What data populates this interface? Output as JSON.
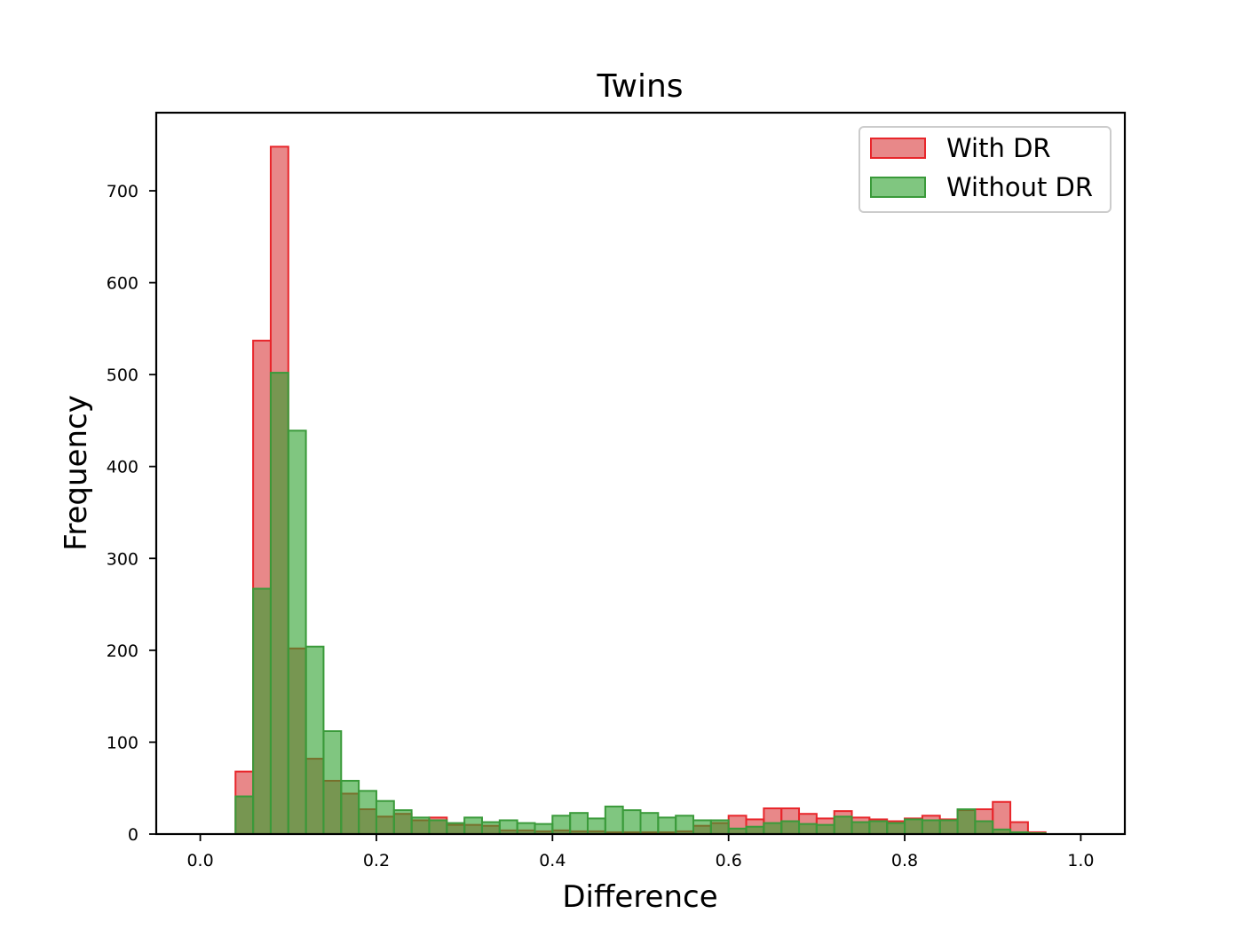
{
  "chart_data": {
    "type": "histogram",
    "title": "Twins",
    "xlabel": "Difference",
    "ylabel": "Frequency",
    "xlim": [
      -0.05,
      1.05
    ],
    "ylim": [
      0,
      785
    ],
    "xticks": [
      0.0,
      0.2,
      0.4,
      0.6,
      0.8,
      1.0
    ],
    "xtick_labels": [
      "0.0",
      "0.2",
      "0.4",
      "0.6",
      "0.8",
      "1.0"
    ],
    "yticks": [
      0,
      100,
      200,
      300,
      400,
      500,
      600,
      700
    ],
    "ytick_labels": [
      "0",
      "100",
      "200",
      "300",
      "400",
      "500",
      "600",
      "700"
    ],
    "grid": false,
    "legend_position": "top-right",
    "bin_start": 0.02,
    "bin_width": 0.02,
    "series": [
      {
        "name": "With DR",
        "fill": "#d62728",
        "edge": "#e8262b",
        "opacity": 0.55,
        "values": [
          0,
          68,
          537,
          748,
          202,
          82,
          58,
          44,
          27,
          19,
          22,
          15,
          18,
          10,
          10,
          9,
          4,
          4,
          3,
          4,
          3,
          3,
          2,
          2,
          2,
          2,
          3,
          9,
          12,
          20,
          16,
          28,
          28,
          22,
          17,
          25,
          18,
          16,
          14,
          17,
          20,
          16,
          26,
          27,
          35,
          13,
          2
        ]
      },
      {
        "name": "Without DR",
        "fill": "#2ca02c",
        "edge": "#3a9a3a",
        "opacity": 0.6,
        "values": [
          0,
          41,
          267,
          502,
          439,
          204,
          112,
          58,
          47,
          36,
          26,
          18,
          15,
          12,
          18,
          13,
          15,
          12,
          11,
          20,
          23,
          17,
          30,
          26,
          23,
          18,
          20,
          15,
          15,
          6,
          8,
          12,
          14,
          11,
          10,
          19,
          13,
          14,
          12,
          16,
          15,
          15,
          27,
          14,
          5,
          2,
          1
        ]
      }
    ]
  }
}
